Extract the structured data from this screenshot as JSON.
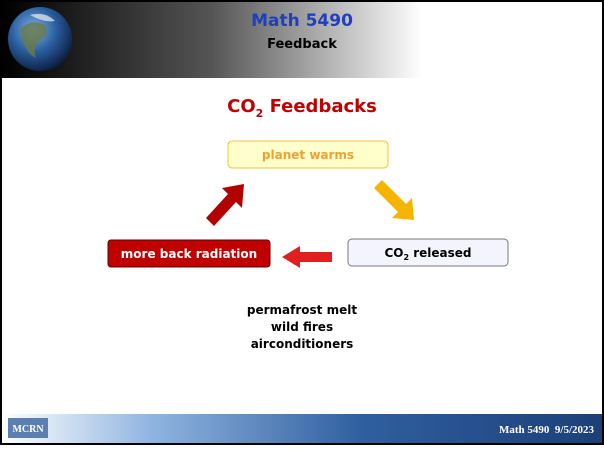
{
  "header": {
    "title": "Math 5490",
    "subtitle": "Feedback"
  },
  "slide_title": {
    "main": "CO",
    "sub": "2",
    "rest": " Feedbacks"
  },
  "nodes": [
    {
      "label": "planet warms"
    },
    {
      "label_main": "CO",
      "label_sub": "2",
      "label_rest": " released"
    },
    {
      "label": "more back radiation"
    }
  ],
  "causes": [
    "permafrost melt",
    "wild fires",
    "airconditioners"
  ],
  "footer": {
    "logo": "MCRN",
    "text": "Math 5490  9/5/2023"
  }
}
